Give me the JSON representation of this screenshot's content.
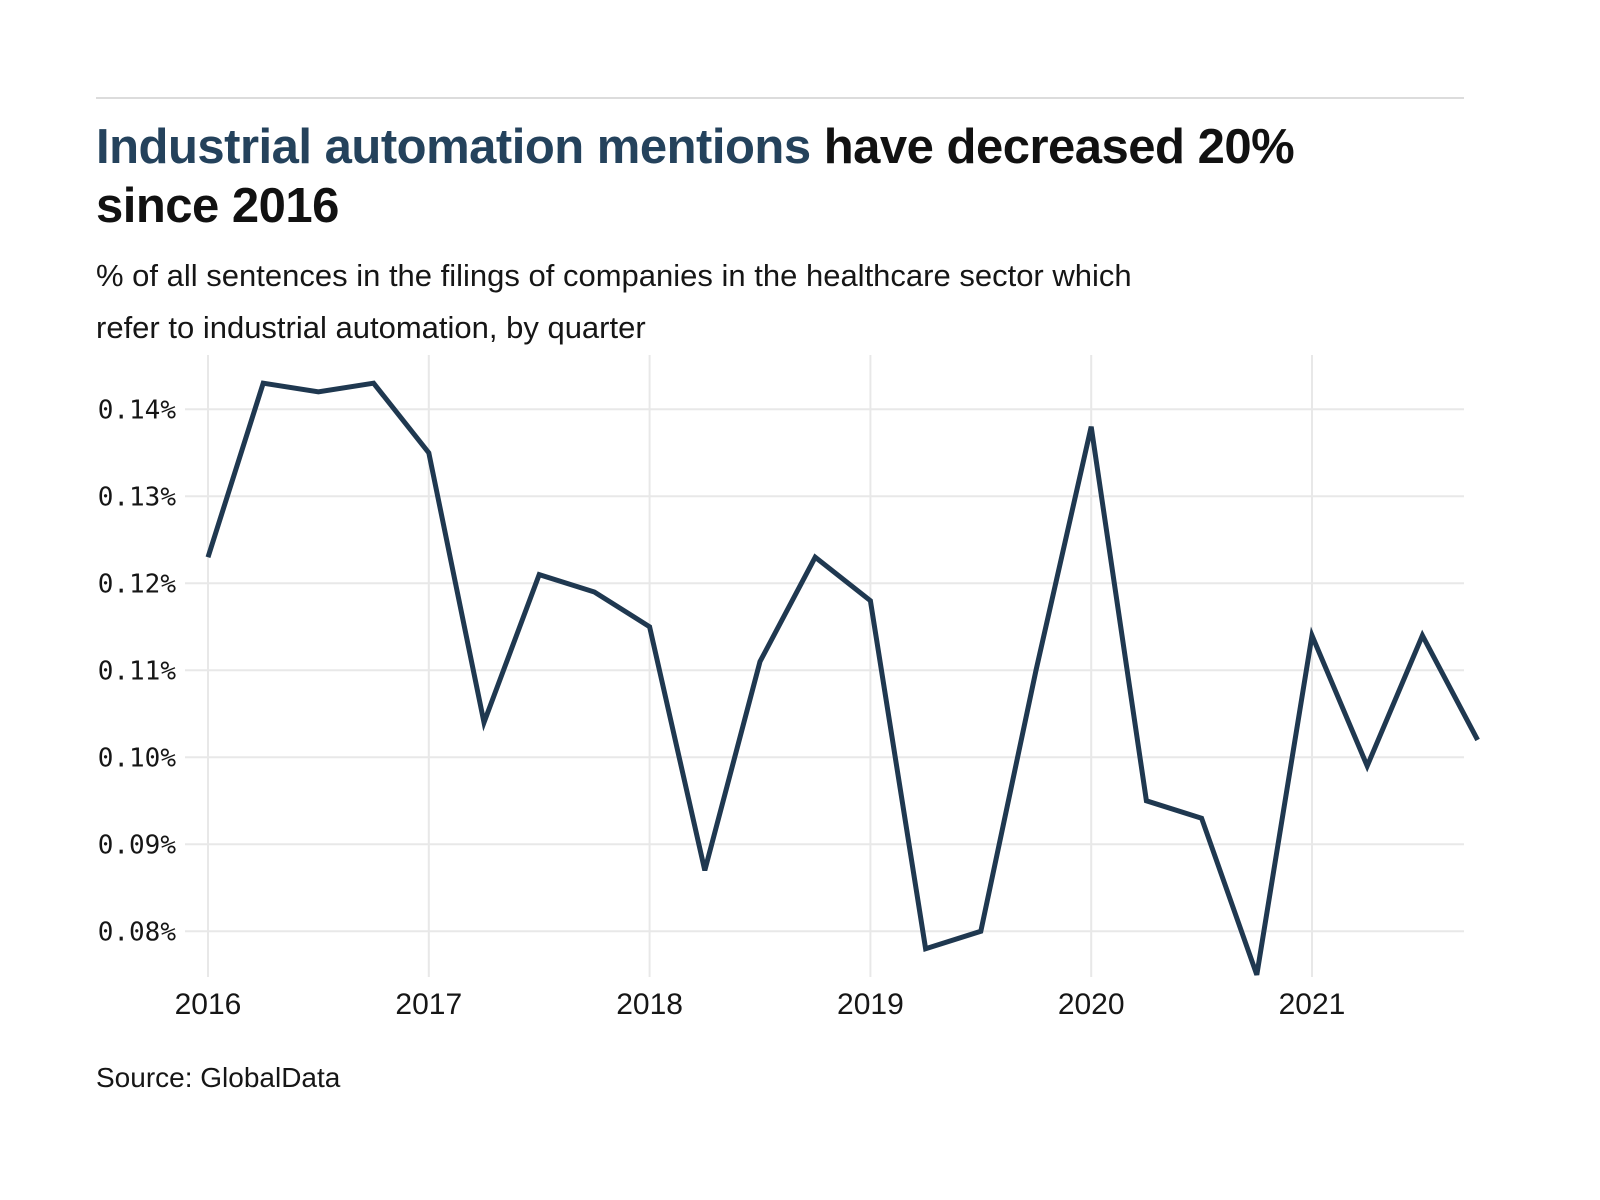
{
  "header": {
    "title_highlight": "Industrial automation mentions ",
    "title_rest": "have decreased 20%",
    "title_line2": "since 2016",
    "subtitle_line1": "% of all sentences in the filings of companies in the healthcare sector which",
    "subtitle_line2": "refer to industrial automation, by quarter"
  },
  "footer": {
    "source": "Source: GlobalData"
  },
  "colors": {
    "line": "#1f3850",
    "grid": "#e8e8e8",
    "title_highlight": "#24425c",
    "text": "#161616",
    "rule": "#dcdcdc"
  },
  "chart_data": {
    "type": "line",
    "title": "Industrial automation mentions have decreased 20% since 2016",
    "subtitle": "% of all sentences in the filings of companies in the healthcare sector which refer to industrial automation, by quarter",
    "unit": "percent of all sentences",
    "x": [
      "2016 Q1",
      "2016 Q2",
      "2016 Q3",
      "2016 Q4",
      "2017 Q1",
      "2017 Q2",
      "2017 Q3",
      "2017 Q4",
      "2018 Q1",
      "2018 Q2",
      "2018 Q3",
      "2018 Q4",
      "2019 Q1",
      "2019 Q2",
      "2019 Q3",
      "2019 Q4",
      "2020 Q1",
      "2020 Q2",
      "2020 Q3",
      "2020 Q4",
      "2021 Q1",
      "2021 Q2",
      "2021 Q3",
      "2021 Q4"
    ],
    "values": [
      0.123,
      0.143,
      0.142,
      0.143,
      0.135,
      0.104,
      0.121,
      0.119,
      0.115,
      0.087,
      0.111,
      0.123,
      0.118,
      0.078,
      0.08,
      0.11,
      0.138,
      0.095,
      0.093,
      0.075,
      0.114,
      0.099,
      0.114,
      0.102
    ],
    "series_name": "Industrial automation mentions (% of sentences)",
    "y_ticks": [
      0.14,
      0.13,
      0.12,
      0.11,
      0.1,
      0.09,
      0.08
    ],
    "y_tick_labels": [
      "0.14%",
      "0.13%",
      "0.12%",
      "0.11%",
      "0.10%",
      "0.09%",
      "0.08%"
    ],
    "x_tick_labels": [
      "2016",
      "2017",
      "2018",
      "2019",
      "2020",
      "2021"
    ],
    "ylim": [
      0.0747,
      0.1451
    ],
    "grid": true,
    "legend_position": "none"
  }
}
